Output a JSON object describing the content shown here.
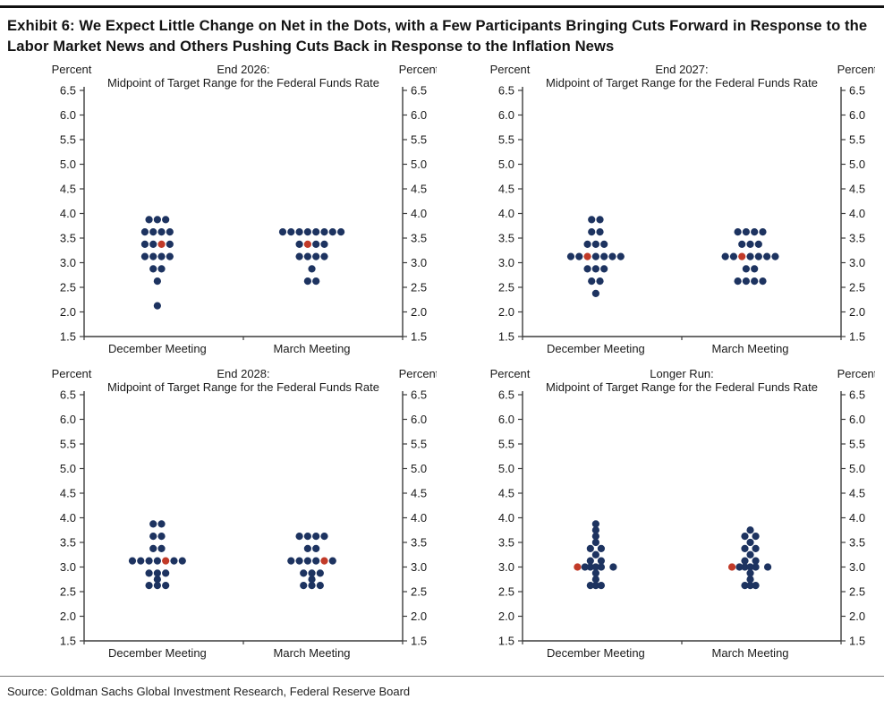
{
  "page": {
    "title": "Exhibit 6: We Expect Little Change on Net in the Dots, with a Few Participants Bringing Cuts Forward in Response to the Labor Market News and Others Pushing Cuts Back in Response to the Inflation News",
    "source": "Source: Goldman Sachs Global Investment Research, Federal Reserve Board"
  },
  "style": {
    "dot_color": "#1d3360",
    "red_dot_color": "#c13a28",
    "axis_color": "#3c3c3c",
    "text_color": "#1a1a1a"
  },
  "axis": {
    "unit_label": "Percent",
    "min": 1.5,
    "max": 6.5,
    "tick_step": 0.5,
    "tick_labels": [
      "6.5",
      "6.0",
      "5.5",
      "5.0",
      "4.5",
      "4.0",
      "3.5",
      "3.0",
      "2.5",
      "2.0",
      "1.5"
    ]
  },
  "chart_data": [
    {
      "type": "scatter",
      "title_line1": "End 2026:",
      "title_line2": "Midpoint of Target Range for the Federal Funds Rate",
      "ylabel": "Percent",
      "ylim": [
        1.5,
        6.5
      ],
      "grid": false,
      "categories": [
        "December Meeting",
        "March Meeting"
      ],
      "series": [
        {
          "name": "December Meeting",
          "rows": [
            {
              "v": 3.875,
              "dots": "nnn"
            },
            {
              "v": 3.625,
              "dots": "nnnn"
            },
            {
              "v": 3.375,
              "dots": "nnRn"
            },
            {
              "v": 3.125,
              "dots": "nnnn"
            },
            {
              "v": 2.875,
              "dots": "nn"
            },
            {
              "v": 2.625,
              "dots": "n"
            },
            {
              "v": 2.125,
              "dots": "n"
            }
          ]
        },
        {
          "name": "March Meeting",
          "rows": [
            {
              "v": 3.625,
              "dots": "nnnnnnnn"
            },
            {
              "v": 3.375,
              "dots": "nRnn"
            },
            {
              "v": 3.125,
              "dots": "nnnn"
            },
            {
              "v": 2.875,
              "dots": "n"
            },
            {
              "v": 2.625,
              "dots": "nn"
            }
          ]
        }
      ]
    },
    {
      "type": "scatter",
      "title_line1": "End 2027:",
      "title_line2": "Midpoint of Target Range for the Federal Funds Rate",
      "ylabel": "Percent",
      "ylim": [
        1.5,
        6.5
      ],
      "grid": false,
      "categories": [
        "December Meeting",
        "March Meeting"
      ],
      "series": [
        {
          "name": "December Meeting",
          "rows": [
            {
              "v": 3.875,
              "dots": "nn"
            },
            {
              "v": 3.625,
              "dots": "nn"
            },
            {
              "v": 3.375,
              "dots": "nnn"
            },
            {
              "v": 3.125,
              "dots": "nnRnnnn"
            },
            {
              "v": 2.875,
              "dots": "nnn"
            },
            {
              "v": 2.625,
              "dots": "nn"
            },
            {
              "v": 2.375,
              "dots": "n"
            }
          ]
        },
        {
          "name": "March Meeting",
          "rows": [
            {
              "v": 3.625,
              "dots": "nnnn"
            },
            {
              "v": 3.375,
              "dots": "nnn"
            },
            {
              "v": 3.125,
              "dots": "nnRnnnn"
            },
            {
              "v": 2.875,
              "dots": "nn"
            },
            {
              "v": 2.625,
              "dots": "nnnn"
            }
          ]
        }
      ]
    },
    {
      "type": "scatter",
      "title_line1": "End 2028:",
      "title_line2": "Midpoint of Target Range for the Federal Funds Rate",
      "ylabel": "Percent",
      "ylim": [
        1.5,
        6.5
      ],
      "grid": false,
      "categories": [
        "December Meeting",
        "March Meeting"
      ],
      "series": [
        {
          "name": "December Meeting",
          "rows": [
            {
              "v": 3.875,
              "dots": "nn"
            },
            {
              "v": 3.625,
              "dots": "nn"
            },
            {
              "v": 3.375,
              "dots": "nn"
            },
            {
              "v": 3.125,
              "dots": "nnnnRnn"
            },
            {
              "v": 2.875,
              "dots": "nnn"
            },
            {
              "v": 2.75,
              "dots": "n"
            },
            {
              "v": 2.625,
              "dots": "nnn"
            }
          ]
        },
        {
          "name": "March Meeting",
          "rows": [
            {
              "v": 3.625,
              "dots": "nnnn"
            },
            {
              "v": 3.375,
              "dots": "nn"
            },
            {
              "v": 3.125,
              "dots": "nnnnRn"
            },
            {
              "v": 2.875,
              "dots": "nnn"
            },
            {
              "v": 2.75,
              "dots": "n"
            },
            {
              "v": 2.625,
              "dots": "nnn"
            }
          ]
        }
      ]
    },
    {
      "type": "scatter",
      "title_line1": "Longer Run:",
      "title_line2": "Midpoint of Target Range for the Federal Funds Rate",
      "ylabel": "Percent",
      "ylim": [
        1.5,
        6.5
      ],
      "grid": false,
      "categories": [
        "December Meeting",
        "March Meeting"
      ],
      "series": [
        {
          "name": "December Meeting",
          "rows": [
            {
              "v": 3.875,
              "dots": "n"
            },
            {
              "v": 3.75,
              "dots": "n"
            },
            {
              "v": 3.625,
              "dots": "n"
            },
            {
              "v": 3.5,
              "dots": "n"
            },
            {
              "v": 3.375,
              "dots": "nn",
              "ox": [
                -0.65,
                0.65
              ]
            },
            {
              "v": 3.25,
              "dots": "n"
            },
            {
              "v": 3.125,
              "dots": "nn",
              "ox": [
                -0.65,
                0.65
              ]
            },
            {
              "v": 3.0,
              "dots": "Rnnnnn",
              "ox": [
                -2.2,
                -1.3,
                -0.65,
                0,
                0.65,
                2.1
              ]
            },
            {
              "v": 2.875,
              "dots": "n"
            },
            {
              "v": 2.75,
              "dots": "n"
            },
            {
              "v": 2.625,
              "dots": "nnn",
              "ox": [
                -0.65,
                0,
                0.65
              ]
            }
          ]
        },
        {
          "name": "March Meeting",
          "rows": [
            {
              "v": 3.75,
              "dots": "n"
            },
            {
              "v": 3.625,
              "dots": "nn",
              "ox": [
                -0.65,
                0.65
              ]
            },
            {
              "v": 3.5,
              "dots": "n"
            },
            {
              "v": 3.375,
              "dots": "nn",
              "ox": [
                -0.65,
                0.65
              ]
            },
            {
              "v": 3.25,
              "dots": "n"
            },
            {
              "v": 3.125,
              "dots": "nn",
              "ox": [
                -0.65,
                0.65
              ]
            },
            {
              "v": 3.0,
              "dots": "Rnnnnn",
              "ox": [
                -2.2,
                -1.3,
                -0.65,
                0,
                0.65,
                2.1
              ]
            },
            {
              "v": 2.875,
              "dots": "n"
            },
            {
              "v": 2.75,
              "dots": "n"
            },
            {
              "v": 2.625,
              "dots": "nnn",
              "ox": [
                -0.65,
                0,
                0.65
              ]
            }
          ]
        }
      ]
    }
  ]
}
